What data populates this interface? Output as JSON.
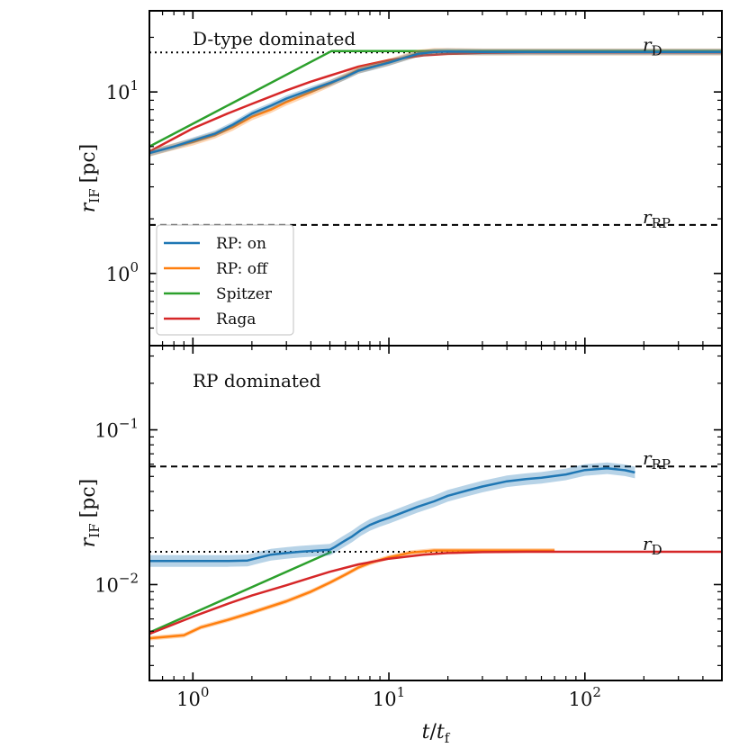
{
  "chart_data": [
    {
      "type": "line",
      "panel": "top",
      "annotation": "D-type dominated",
      "x_scale": "log",
      "y_scale": "log",
      "xlim": [
        0.6,
        500
      ],
      "ylim": [
        0.4,
        28
      ],
      "ylabel_var": "r",
      "ylabel_sub": "IF",
      "ylabel_unit": "[pc]",
      "yticks": [
        {
          "value": 1,
          "base": "10",
          "exp": "0"
        },
        {
          "value": 10,
          "base": "10",
          "exp": "1"
        }
      ],
      "reference_lines": [
        {
          "name": "r_D",
          "y": 16.5,
          "style": "dotted",
          "label_var": "r",
          "label_sub": "D"
        },
        {
          "name": "r_RP",
          "y": 1.85,
          "style": "dashed",
          "label_var": "r",
          "label_sub": "RP"
        }
      ],
      "series": [
        {
          "name": "Raga",
          "color": "#d62728",
          "x": [
            0.6,
            1,
            1.5,
            2,
            3,
            4,
            5,
            7,
            10,
            15,
            20,
            30,
            50,
            100,
            200,
            500
          ],
          "y": [
            4.7,
            6.3,
            7.6,
            8.6,
            10.2,
            11.4,
            12.3,
            13.8,
            15.0,
            15.9,
            16.2,
            16.4,
            16.5,
            16.5,
            16.5,
            16.5
          ]
        },
        {
          "name": "Spitzer",
          "color": "#2ca02c",
          "x": [
            0.6,
            5.1,
            15,
            500
          ],
          "y": [
            5.0,
            16.8,
            16.8,
            16.8
          ]
        },
        {
          "name": "RP: off",
          "color": "#ff7f0e",
          "band": 0.045,
          "x": [
            0.6,
            0.8,
            1,
            1.3,
            1.6,
            2,
            2.5,
            3,
            4,
            5,
            6,
            7,
            8,
            10,
            12,
            14,
            17,
            20,
            30,
            50,
            100,
            200,
            500
          ],
          "y": [
            4.6,
            5.0,
            5.3,
            5.8,
            6.4,
            7.3,
            8.0,
            8.8,
            10.0,
            11.1,
            12.2,
            13.2,
            13.7,
            14.6,
            15.5,
            16.3,
            16.7,
            16.7,
            16.6,
            16.6,
            16.6,
            16.6,
            16.6
          ]
        },
        {
          "name": "RP: on",
          "color": "#1f77b4",
          "band": 0.04,
          "x": [
            0.6,
            0.8,
            1,
            1.3,
            1.6,
            2,
            2.5,
            3,
            4,
            5,
            6,
            7,
            8,
            10,
            12,
            14,
            17,
            20,
            30,
            50,
            100,
            200,
            500
          ],
          "y": [
            4.6,
            5.0,
            5.4,
            5.9,
            6.6,
            7.6,
            8.4,
            9.2,
            10.3,
            11.2,
            12.1,
            13.1,
            13.6,
            14.5,
            15.4,
            16.2,
            16.6,
            16.7,
            16.6,
            16.6,
            16.6,
            16.6,
            16.6
          ]
        }
      ],
      "legend": {
        "position": "lower-left",
        "entries": [
          {
            "label": "RP: on",
            "color": "#1f77b4"
          },
          {
            "label": "RP: off",
            "color": "#ff7f0e"
          },
          {
            "label": "Spitzer",
            "color": "#2ca02c"
          },
          {
            "label": "Raga",
            "color": "#d62728"
          }
        ]
      }
    },
    {
      "type": "line",
      "panel": "bottom",
      "annotation": "RP dominated",
      "x_scale": "log",
      "y_scale": "log",
      "xlim": [
        0.6,
        500
      ],
      "ylim": [
        0.0024,
        0.35
      ],
      "xlabel_num": "t",
      "xlabel_den": "t",
      "xlabel_den_sub": "f",
      "xticks": [
        {
          "value": 1,
          "base": "10",
          "exp": "0"
        },
        {
          "value": 10,
          "base": "10",
          "exp": "1"
        },
        {
          "value": 100,
          "base": "10",
          "exp": "2"
        }
      ],
      "ylabel_var": "r",
      "ylabel_sub": "IF",
      "ylabel_unit": "[pc]",
      "yticks": [
        {
          "value": 0.01,
          "base": "10",
          "exp": "−2"
        },
        {
          "value": 0.1,
          "base": "10",
          "exp": "−1"
        }
      ],
      "reference_lines": [
        {
          "name": "r_RP",
          "y": 0.058,
          "style": "dashed",
          "label_var": "r",
          "label_sub": "RP"
        },
        {
          "name": "r_D",
          "y": 0.0163,
          "style": "dotted",
          "label_var": "r",
          "label_sub": "D"
        }
      ],
      "series": [
        {
          "name": "Spitzer",
          "color": "#2ca02c",
          "x": [
            0.6,
            5.1
          ],
          "y": [
            0.0049,
            0.0163
          ]
        },
        {
          "name": "RP: off",
          "color": "#ff7f0e",
          "band": 0.035,
          "x": [
            0.6,
            0.9,
            1.1,
            1.5,
            2,
            3,
            4,
            5,
            6,
            7,
            8,
            10,
            13,
            17,
            25,
            40,
            70
          ],
          "y": [
            0.0045,
            0.0047,
            0.0053,
            0.0059,
            0.0066,
            0.0078,
            0.009,
            0.0103,
            0.0116,
            0.0129,
            0.0138,
            0.015,
            0.0161,
            0.0166,
            0.0166,
            0.0166,
            0.0166
          ]
        },
        {
          "name": "Raga",
          "color": "#d62728",
          "x": [
            0.6,
            1,
            1.5,
            2,
            3,
            4,
            5,
            7,
            10,
            15,
            20,
            30,
            50,
            100,
            200,
            500
          ],
          "y": [
            0.0048,
            0.0062,
            0.0075,
            0.0085,
            0.0099,
            0.0111,
            0.0121,
            0.0135,
            0.0147,
            0.0156,
            0.016,
            0.0162,
            0.0163,
            0.0163,
            0.0163,
            0.0163
          ]
        },
        {
          "name": "RP: on",
          "color": "#1f77b4",
          "band": 0.09,
          "x": [
            0.6,
            1,
            1.5,
            1.9,
            2.2,
            2.5,
            3,
            3.5,
            4,
            5,
            5.3,
            5.8,
            6.5,
            7.2,
            8,
            9,
            10,
            12,
            14,
            17,
            20,
            25,
            30,
            40,
            50,
            60,
            80,
            100,
            130,
            160,
            180
          ],
          "y": [
            0.0142,
            0.0142,
            0.0142,
            0.0143,
            0.015,
            0.0156,
            0.016,
            0.0163,
            0.0165,
            0.0168,
            0.0175,
            0.0188,
            0.0205,
            0.0225,
            0.0243,
            0.0258,
            0.027,
            0.0295,
            0.0318,
            0.0345,
            0.0375,
            0.0405,
            0.043,
            0.0465,
            0.048,
            0.049,
            0.0515,
            0.055,
            0.0565,
            0.0548,
            0.053
          ]
        }
      ]
    }
  ]
}
